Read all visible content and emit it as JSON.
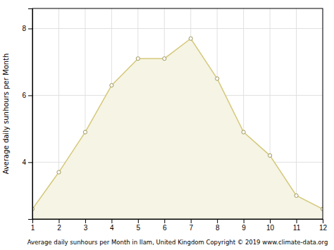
{
  "chart_data": {
    "type": "area",
    "x": [
      1,
      2,
      3,
      4,
      5,
      6,
      7,
      8,
      9,
      10,
      11,
      12
    ],
    "values": [
      2.6,
      3.7,
      4.9,
      6.3,
      7.1,
      7.1,
      7.7,
      6.5,
      4.9,
      4.2,
      3.0,
      2.6
    ],
    "color": "#D4C87A",
    "marker": "circle",
    "xlabel": "Average daily sunhours per Month in Ilam, United Kingdom Copyright © 2019 www.climate-data.org",
    "ylabel": "Average daily sunhours per Month",
    "xlim": [
      1,
      12
    ],
    "ylim": [
      2.3,
      8.6
    ],
    "xticks": [
      1,
      2,
      3,
      4,
      5,
      6,
      7,
      8,
      9,
      10,
      11,
      12
    ],
    "yticks": [
      4,
      6,
      8
    ],
    "grid": true
  }
}
